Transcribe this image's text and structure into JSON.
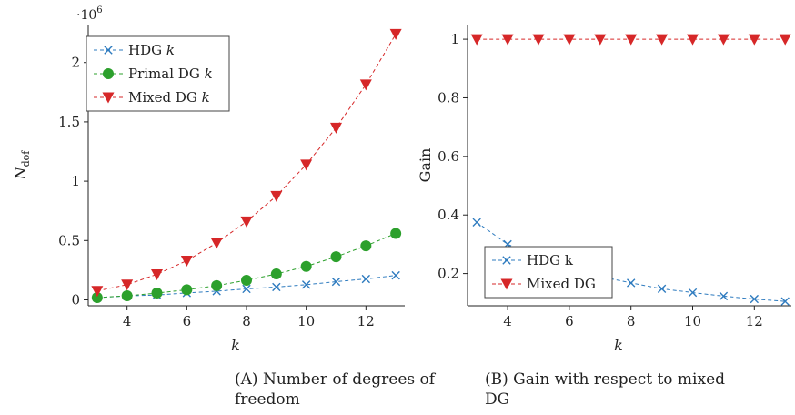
{
  "chart_data": [
    {
      "type": "line",
      "caption": "(a) Number of degrees of freedom",
      "caption_prefix": "(A)",
      "caption_text": "Number of degrees of freedom",
      "xlabel": "k",
      "ylabel_main": "N",
      "ylabel_sub": "dof",
      "y_multiplier_base": "·10",
      "y_multiplier_exp": "6",
      "xlim": [
        2.7,
        13.3
      ],
      "ylim": [
        -0.05,
        2.32
      ],
      "xticks": [
        4,
        6,
        8,
        10,
        12
      ],
      "yticks": [
        0,
        0.5,
        1,
        1.5,
        2
      ],
      "ytick_labels": [
        "0",
        "0.5",
        "1",
        "1.5",
        "2"
      ],
      "legend_position": "top-left",
      "grid": false,
      "x": [
        3,
        4,
        5,
        6,
        7,
        8,
        9,
        10,
        11,
        12,
        13
      ],
      "series": [
        {
          "name_main": "HDG",
          "name_var": "k",
          "marker": "x",
          "color": "#2e7bbf",
          "values": [
            0.019,
            0.033,
            0.041,
            0.058,
            0.073,
            0.092,
            0.108,
            0.128,
            0.153,
            0.176,
            0.206
          ]
        },
        {
          "name_main": "Primal DG",
          "name_var": "k",
          "marker": "circle",
          "color": "#2ca02c",
          "values": [
            0.019,
            0.034,
            0.057,
            0.085,
            0.12,
            0.165,
            0.218,
            0.282,
            0.363,
            0.455,
            0.56
          ]
        },
        {
          "name_main": "Mixed DG",
          "name_var": "k",
          "marker": "triangle-down",
          "color": "#d62728",
          "values": [
            0.075,
            0.128,
            0.215,
            0.33,
            0.48,
            0.66,
            0.875,
            1.14,
            1.45,
            1.815,
            2.24
          ]
        }
      ]
    },
    {
      "type": "line",
      "caption": "(b) Gain with respect to mixed DG",
      "caption_prefix": "(B)",
      "caption_text": "Gain with respect to mixed DG",
      "xlabel": "k",
      "ylabel": "Gain",
      "xlim": [
        2.7,
        13.2
      ],
      "ylim": [
        0.09,
        1.05
      ],
      "xticks": [
        4,
        6,
        8,
        10,
        12
      ],
      "yticks": [
        0.2,
        0.4,
        0.6,
        0.8,
        1
      ],
      "ytick_labels": [
        "0.2",
        "0.4",
        "0.6",
        "0.8",
        "1"
      ],
      "legend_position": "bottom-left",
      "grid": false,
      "x": [
        3,
        4,
        5,
        6,
        7,
        8,
        9,
        10,
        11,
        12,
        13
      ],
      "series": [
        {
          "name": "HDG k",
          "marker": "x",
          "color": "#2e7bbf",
          "values": [
            0.375,
            0.3,
            0.255,
            0.215,
            0.19,
            0.168,
            0.148,
            0.135,
            0.123,
            0.113,
            0.105
          ]
        },
        {
          "name": "Mixed DG",
          "marker": "triangle-down",
          "color": "#d62728",
          "values": [
            1,
            1,
            1,
            1,
            1,
            1,
            1,
            1,
            1,
            1,
            1
          ]
        }
      ]
    }
  ]
}
